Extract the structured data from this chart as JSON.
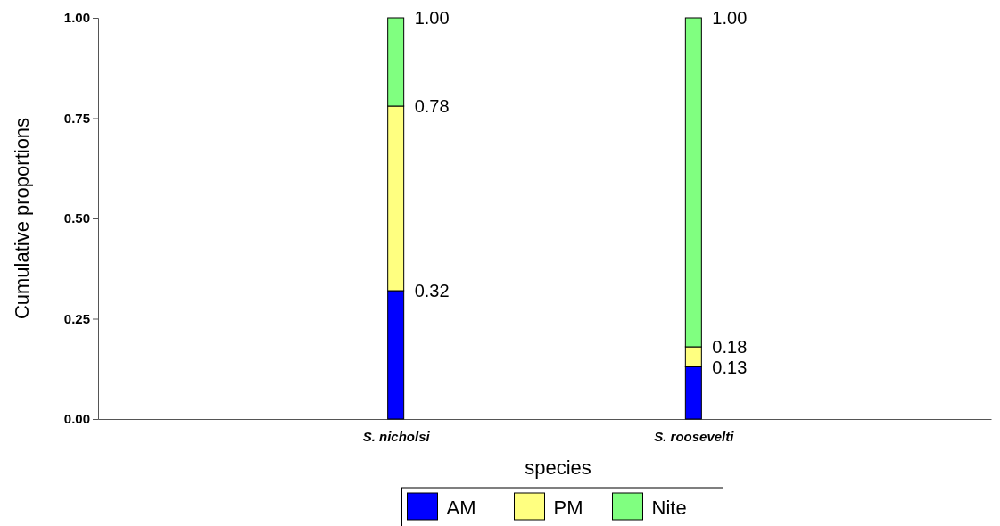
{
  "chart_data": {
    "type": "bar",
    "stacked": true,
    "xlabel": "species",
    "ylabel": "Cumulative proportions",
    "categories": [
      "S. nicholsi",
      "S. roosevelti"
    ],
    "ylim": [
      0,
      1
    ],
    "yticks": [
      {
        "value": 0,
        "label": "0.00"
      },
      {
        "value": 0.25,
        "label": "0.25"
      },
      {
        "value": 0.5,
        "label": "0.50"
      },
      {
        "value": 0.75,
        "label": "0.75"
      },
      {
        "value": 1,
        "label": "1.00"
      }
    ],
    "series": [
      {
        "name": "AM",
        "color": "#0000ff",
        "values": [
          0.32,
          0.13
        ]
      },
      {
        "name": "PM",
        "color": "#ffff80",
        "values": [
          0.46,
          0.05
        ]
      },
      {
        "name": "Nite",
        "color": "#80ff80",
        "values": [
          0.22,
          0.82
        ]
      }
    ],
    "annotations": [
      {
        "text": "0.32",
        "x": "S. nicholsi",
        "y": 0.32
      },
      {
        "text": "0.78",
        "x": "S. nicholsi",
        "y": 0.78
      },
      {
        "text": "1.00",
        "x": "S. nicholsi",
        "y": 1.0
      },
      {
        "text": "0.13",
        "x": "S. roosevelti",
        "y": 0.13
      },
      {
        "text": "0.18",
        "x": "S. roosevelti",
        "y": 0.18
      },
      {
        "text": "1.00",
        "x": "S. roosevelti",
        "y": 1.0
      }
    ],
    "grid": false,
    "legend": "bottom"
  }
}
